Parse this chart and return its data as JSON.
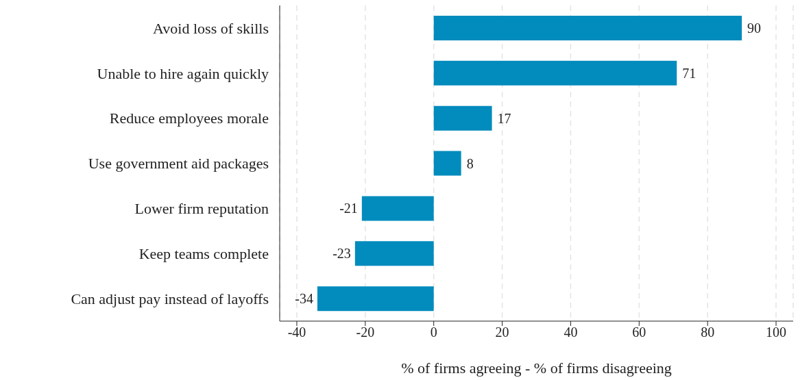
{
  "chart_data": {
    "type": "bar",
    "orientation": "horizontal",
    "categories": [
      "Avoid loss of skills",
      "Unable to hire again quickly",
      "Reduce employees morale",
      "Use government aid packages",
      "Lower firm reputation",
      "Keep teams complete",
      "Can adjust pay instead of layoffs"
    ],
    "values": [
      90,
      71,
      17,
      8,
      -21,
      -23,
      -34
    ],
    "color": "#028bbd",
    "xlabel": "% of firms agreeing - % of firms disagreeing",
    "xlim": [
      -45,
      105
    ],
    "xticks": [
      -40,
      -20,
      0,
      20,
      40,
      60,
      80,
      100
    ],
    "grid": "x",
    "data_labels": true
  }
}
